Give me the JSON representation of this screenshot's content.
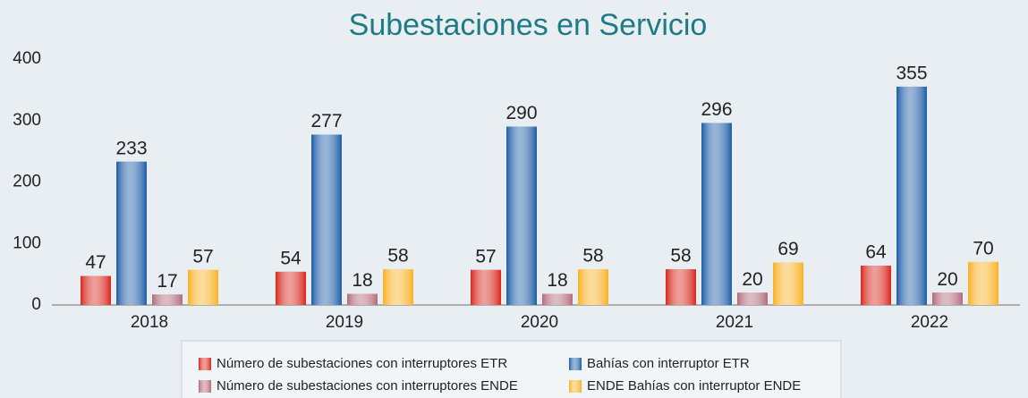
{
  "chart_data": {
    "type": "bar",
    "title": "Subestaciones en Servicio",
    "categories": [
      "2018",
      "2019",
      "2020",
      "2021",
      "2022"
    ],
    "series": [
      {
        "name": "Número de subestaciones con interruptores ETR",
        "color": "#d8261d",
        "values": [
          47,
          54,
          57,
          58,
          64
        ]
      },
      {
        "name": "Bahías con interruptor ETR",
        "color": "#1c5ca6",
        "values": [
          233,
          277,
          290,
          296,
          355
        ]
      },
      {
        "name": "Número de subestaciones con interruptores ENDE",
        "color": "#b06a78",
        "values": [
          17,
          18,
          18,
          20,
          20
        ]
      },
      {
        "name": "ENDE Bahías con interruptor ENDE",
        "color": "#f9b123",
        "values": [
          57,
          58,
          58,
          69,
          70
        ]
      }
    ],
    "ylim": [
      0,
      400
    ],
    "yticks": [
      0,
      100,
      200,
      300,
      400
    ],
    "grid": false
  }
}
